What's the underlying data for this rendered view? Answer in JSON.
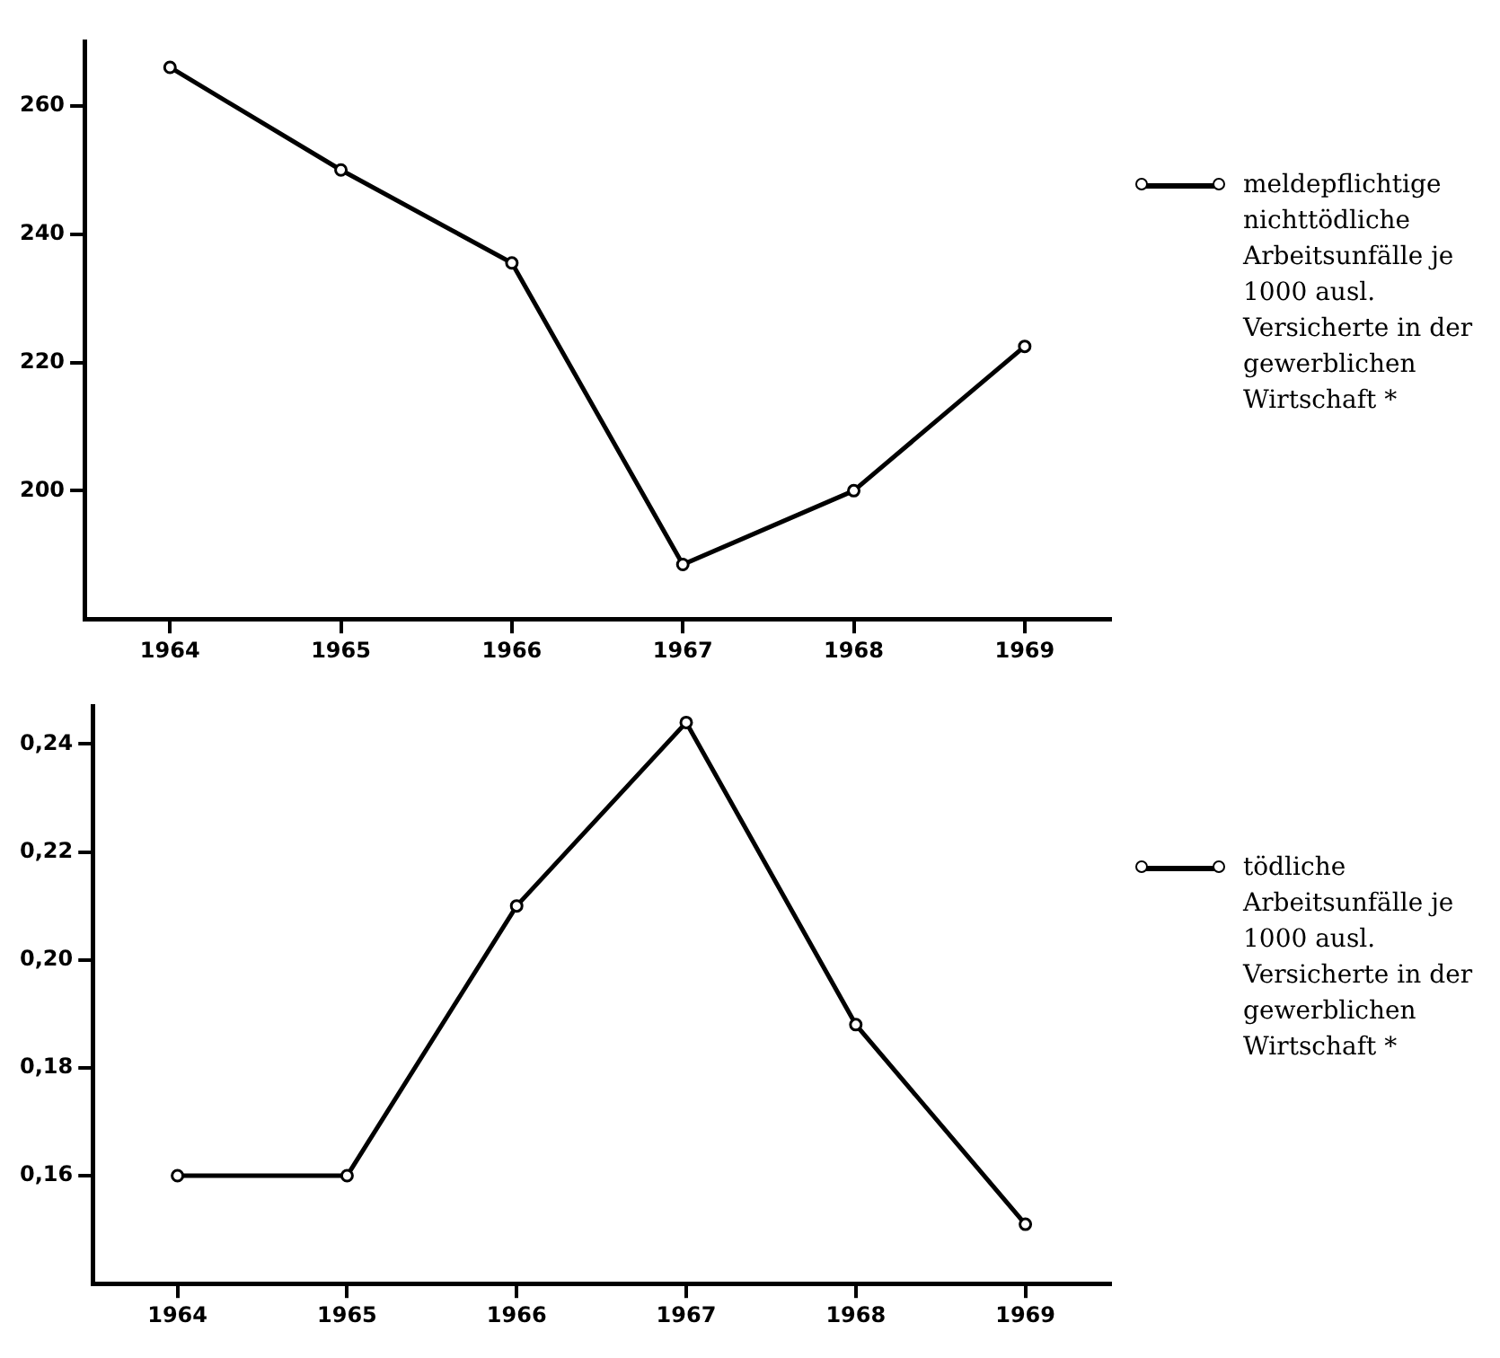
{
  "chart_data": [
    {
      "type": "line",
      "categories": [
        "1964",
        "1965",
        "1966",
        "1967",
        "1968",
        "1969"
      ],
      "series": [
        {
          "name": "meldepflichtige nichttödliche Arbeitsunfälle je 1000 ausl. Versicherte in der gewerblichen Wirtschaft *",
          "color": "#000000",
          "values": [
            266,
            250,
            235.5,
            188.5,
            200,
            222.5
          ]
        }
      ],
      "ylim": [
        180,
        270
      ],
      "yticks": [
        200,
        220,
        240,
        260
      ],
      "grid": false,
      "legend": "right",
      "marker": "circle",
      "line_style": "solid"
    },
    {
      "type": "line",
      "categories": [
        "1964",
        "1965",
        "1966",
        "1967",
        "1968",
        "1969"
      ],
      "series": [
        {
          "name": "tödliche Arbeitsunfälle je 1000 ausl. Versicherte in der gewerblichen Wirtschaft *",
          "color": "#000000",
          "values": [
            0.16,
            0.16,
            0.21,
            0.244,
            0.188,
            0.151
          ]
        }
      ],
      "ylim": [
        0.14,
        0.247
      ],
      "yticks": [
        {
          "value": 0.16,
          "label": "0,16"
        },
        {
          "value": 0.18,
          "label": "0,18"
        },
        {
          "value": 0.2,
          "label": "0,20"
        },
        {
          "value": 0.22,
          "label": "0,22"
        },
        {
          "value": 0.24,
          "label": "0,24"
        }
      ],
      "grid": false,
      "legend": "right",
      "marker": "circle",
      "line_style": "solid"
    }
  ]
}
